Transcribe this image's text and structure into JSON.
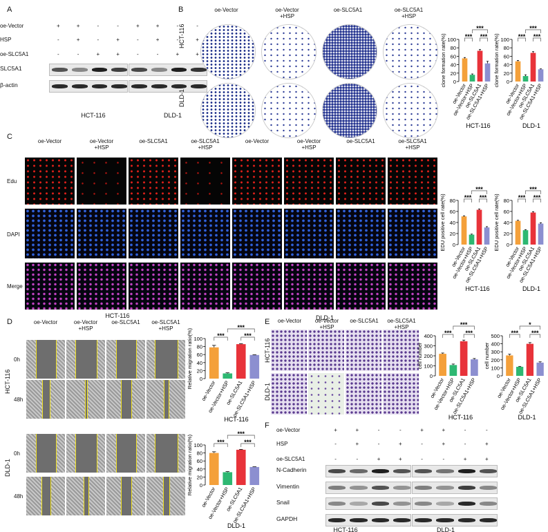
{
  "panels": {
    "A": "A",
    "B": "B",
    "C": "C",
    "D": "D",
    "E": "E",
    "F": "F"
  },
  "groups": [
    "oe-Vector",
    "oe-Vector\n+HSP",
    "oe-SLC5A1",
    "oe-SLC5A1\n+HSP"
  ],
  "cell_lines": [
    "HCT-116",
    "DLD-1"
  ],
  "treatment_rows": [
    {
      "label": "oe-Vector",
      "signs": [
        "+",
        "+",
        "-",
        "-",
        "+",
        "+",
        "-",
        "-"
      ]
    },
    {
      "label": "HSP",
      "signs": [
        "-",
        "+",
        "-",
        "+",
        "-",
        "+",
        "-",
        "+"
      ]
    },
    {
      "label": "oe-SLC5A1",
      "signs": [
        "-",
        "-",
        "+",
        "+",
        "-",
        "-",
        "+",
        "+"
      ]
    }
  ],
  "blotA": {
    "rows": [
      "SLC5A1",
      "β-actin"
    ],
    "intensity": [
      [
        0.7,
        0.45,
        0.95,
        0.8,
        0.75,
        0.45,
        0.95,
        0.85
      ],
      [
        0.9,
        0.9,
        0.9,
        0.9,
        0.9,
        0.9,
        0.9,
        0.9
      ]
    ]
  },
  "blotF": {
    "rows": [
      "N-Cadherin",
      "Vimentin",
      "Snail",
      "GAPDH"
    ],
    "intensity": [
      [
        0.75,
        0.6,
        0.95,
        0.7,
        0.7,
        0.55,
        0.95,
        0.7
      ],
      [
        0.5,
        0.4,
        0.7,
        0.4,
        0.5,
        0.4,
        0.8,
        0.45
      ],
      [
        0.45,
        0.3,
        0.75,
        0.4,
        0.45,
        0.3,
        0.9,
        0.45
      ],
      [
        0.9,
        0.9,
        0.9,
        0.9,
        0.9,
        0.9,
        0.9,
        0.9
      ]
    ]
  },
  "C_rows": [
    "Edu",
    "DAPI",
    "Merge"
  ],
  "D_times": [
    "0h",
    "48h"
  ],
  "colors": {
    "oe-Vector": "#f4a03a",
    "oe-Vector+HSP": "#2eb872",
    "oe-SLC5A1": "#e8333a",
    "oe-SLC5A1+HSP": "#8c8fd0",
    "wound_line": "#f0e020"
  },
  "chart_data": [
    {
      "type": "bar",
      "panel": "B",
      "subtitle": "HCT-116",
      "ylabel": "clone formation rate(%)",
      "categories": [
        "oe-Vector",
        "oe-Vector+HSP",
        "oe-SLC5A1",
        "oe-SLC5A1+HSP"
      ],
      "values": [
        55,
        16,
        73,
        43
      ],
      "errors": [
        2,
        2,
        3,
        5
      ],
      "ylim": [
        0,
        100
      ],
      "ticks": [
        0,
        20,
        40,
        60,
        80,
        100
      ],
      "significance": [
        "***",
        "***",
        "***"
      ]
    },
    {
      "type": "bar",
      "panel": "B",
      "subtitle": "DLD-1",
      "ylabel": "clone formation rate(%)",
      "categories": [
        "oe-Vector",
        "oe-Vector+HSP",
        "oe-SLC5A1",
        "oe-SLC5A1+HSP"
      ],
      "values": [
        48,
        13,
        68,
        29
      ],
      "errors": [
        2,
        3,
        3,
        1
      ],
      "ylim": [
        0,
        100
      ],
      "ticks": [
        0,
        20,
        40,
        60,
        80,
        100
      ],
      "significance": [
        "***",
        "***",
        "***"
      ]
    },
    {
      "type": "bar",
      "panel": "C",
      "subtitle": "HCT-116",
      "ylabel": "EDU positive cell rate(%)",
      "categories": [
        "oe-Vector",
        "oe-Vector+HSP",
        "oe-SLC5A1",
        "oe-SLC5A1+HSP"
      ],
      "values": [
        51,
        18,
        63,
        31
      ],
      "errors": [
        1,
        1,
        1.5,
        1.5
      ],
      "ylim": [
        0,
        80
      ],
      "ticks": [
        0,
        20,
        40,
        60,
        80
      ],
      "significance": [
        "***",
        "***",
        "***"
      ]
    },
    {
      "type": "bar",
      "panel": "C",
      "subtitle": "DLD-1",
      "ylabel": "EDU positive cell rate(%)",
      "categories": [
        "oe-Vector",
        "oe-Vector+HSP",
        "oe-SLC5A1",
        "oe-SLC5A1+HSP"
      ],
      "values": [
        43,
        26,
        58,
        38
      ],
      "errors": [
        1,
        1,
        1.5,
        1.5
      ],
      "ylim": [
        0,
        80
      ],
      "ticks": [
        0,
        20,
        40,
        60,
        80
      ],
      "significance": [
        "***",
        "***",
        "***"
      ]
    },
    {
      "type": "bar",
      "panel": "D",
      "subtitle": "HCT-116",
      "ylabel": "Relative migration ratio(%)",
      "categories": [
        "oe-Vector",
        "oe-Vector+HSP",
        "oe-SLC5A1",
        "oe-SLC5A1+HSP"
      ],
      "values": [
        78,
        13,
        86,
        59
      ],
      "errors": [
        5,
        1.5,
        1,
        0.5
      ],
      "ylim": [
        0,
        100
      ],
      "ticks": [
        0,
        20,
        40,
        60,
        80,
        100
      ],
      "significance": [
        "***",
        "***",
        "***"
      ]
    },
    {
      "type": "bar",
      "panel": "D",
      "subtitle": "DLD-1",
      "ylabel": "Relative migration ratio(%)",
      "categories": [
        "oe-Vector",
        "oe-Vector+HSP",
        "oe-SLC5A1",
        "oe-SLC5A1+HSP"
      ],
      "values": [
        80,
        32,
        88,
        45
      ],
      "errors": [
        3,
        1.5,
        1,
        0.5
      ],
      "ylim": [
        0,
        100
      ],
      "ticks": [
        0,
        20,
        40,
        60,
        80,
        100
      ],
      "significance": [
        "***",
        "***",
        "***"
      ]
    },
    {
      "type": "bar",
      "panel": "E",
      "subtitle": "HCT-116",
      "ylabel": "cell number",
      "categories": [
        "oe-Vector",
        "oe-Vector+HSP",
        "oe-SLC5A1",
        "oe-SLC5A1+HSP"
      ],
      "values": [
        220,
        108,
        345,
        165
      ],
      "errors": [
        8,
        10,
        12,
        8
      ],
      "ylim": [
        0,
        400
      ],
      "ticks": [
        0,
        100,
        200,
        300,
        400
      ],
      "significance": [
        "***",
        "***",
        "***"
      ]
    },
    {
      "type": "bar",
      "panel": "E",
      "subtitle": "DLD-1",
      "ylabel": "cell number",
      "categories": [
        "oe-Vector",
        "oe-Vector+HSP",
        "oe-SLC5A1",
        "oe-SLC5A1+HSP"
      ],
      "values": [
        255,
        113,
        400,
        165
      ],
      "errors": [
        15,
        5,
        15,
        10
      ],
      "ylim": [
        0,
        500
      ],
      "ticks": [
        0,
        100,
        200,
        300,
        400,
        500
      ],
      "significance": [
        "***",
        "***",
        "*"
      ]
    }
  ]
}
